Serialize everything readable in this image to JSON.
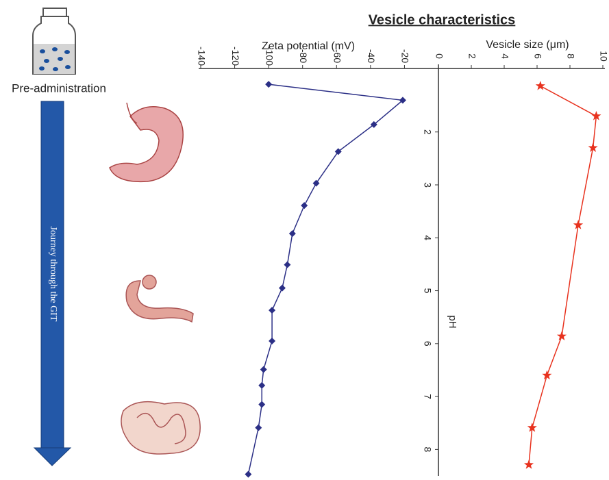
{
  "chart_data": {
    "type": "line",
    "title": "Vesicle characteristics",
    "xlabel": "pH",
    "ylabel": "Zeta potential (mV)",
    "y2label": "Vesicle size (μm)",
    "annotations": [
      "Pre-administration",
      "Journey through the GIT"
    ],
    "xlim": [
      0.8,
      8.5
    ],
    "xticks": [
      2,
      3,
      4,
      5,
      6,
      7,
      8
    ],
    "ylim": [
      -140,
      0
    ],
    "yticks": [
      -140,
      -120,
      -100,
      -80,
      -60,
      -40,
      -20
    ],
    "y2lim": [
      0,
      10
    ],
    "y2ticks": [
      0,
      2,
      4,
      6,
      8,
      10
    ],
    "series": [
      {
        "name": "Zeta potential (mV)",
        "color": "#2b2f86",
        "marker": "diamond",
        "x": [
          1.1,
          1.4,
          1.86,
          2.37,
          2.97,
          3.39,
          3.92,
          4.51,
          4.95,
          5.37,
          5.95,
          6.49,
          6.79,
          7.15,
          7.59,
          8.47
        ],
        "values": [
          -100,
          -21,
          -38,
          -59,
          -72,
          -79,
          -86,
          -89,
          -92,
          -98,
          -98,
          -103,
          -104,
          -104,
          -106,
          -112
        ]
      },
      {
        "name": "Vesicle size (μm)",
        "color": "#e8321e",
        "marker": "star",
        "axis": "y2",
        "x": [
          1.13,
          1.7,
          2.3,
          3.76,
          5.86,
          6.6,
          7.59,
          8.29
        ],
        "values": [
          6.2,
          9.6,
          9.4,
          8.5,
          7.5,
          6.6,
          5.7,
          5.5
        ]
      }
    ]
  }
}
